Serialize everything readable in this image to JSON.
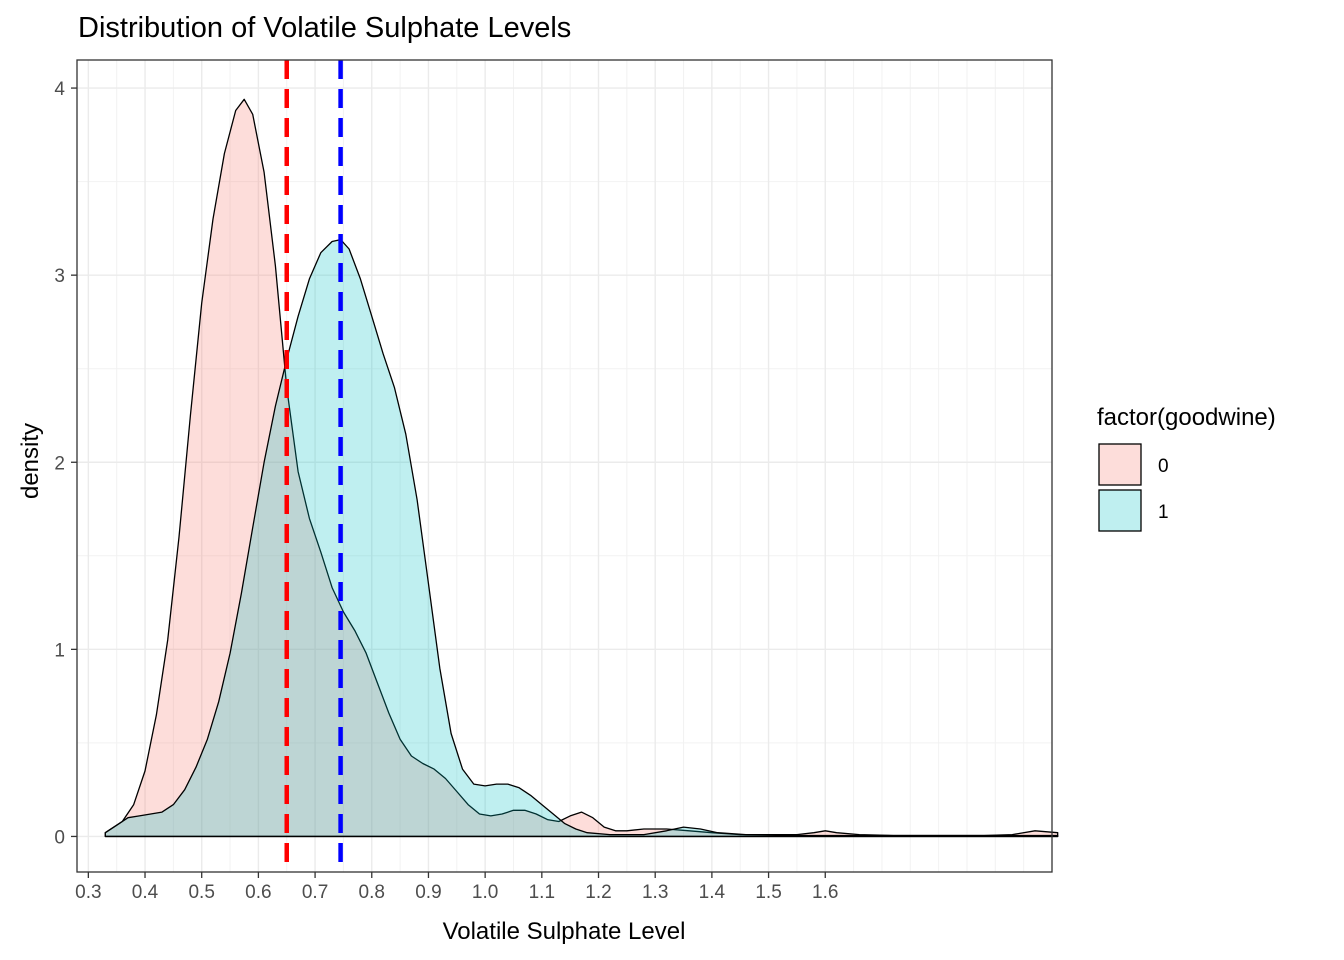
{
  "chart_data": {
    "type": "area",
    "title": "Distribution of Volatile Sulphate Levels",
    "xlabel": "Volatile Sulphate Level",
    "ylabel": "density",
    "xlim": [
      0.28,
      2.0
    ],
    "ylim": [
      -0.19,
      4.15
    ],
    "x_ticks": [
      "0.3",
      "0.4",
      "0.5",
      "0.6",
      "0.7",
      "0.8",
      "0.9",
      "1.0",
      "1.1",
      "1.2",
      "1.3",
      "1.4",
      "1.5",
      "1.6"
    ],
    "y_ticks": [
      "0",
      "1",
      "2",
      "3",
      "4"
    ],
    "grid": true,
    "legend": {
      "title": "factor(goodwine)",
      "position": "right",
      "entries": [
        "0",
        "1"
      ]
    },
    "series": [
      {
        "name": "0",
        "color": "#F8766D",
        "points": [
          [
            0.33,
            0.02
          ],
          [
            0.36,
            0.08
          ],
          [
            0.38,
            0.17
          ],
          [
            0.4,
            0.35
          ],
          [
            0.42,
            0.65
          ],
          [
            0.44,
            1.05
          ],
          [
            0.46,
            1.6
          ],
          [
            0.48,
            2.25
          ],
          [
            0.5,
            2.85
          ],
          [
            0.52,
            3.3
          ],
          [
            0.54,
            3.65
          ],
          [
            0.56,
            3.88
          ],
          [
            0.575,
            3.94
          ],
          [
            0.59,
            3.86
          ],
          [
            0.61,
            3.55
          ],
          [
            0.63,
            3.05
          ],
          [
            0.65,
            2.4
          ],
          [
            0.67,
            1.95
          ],
          [
            0.69,
            1.7
          ],
          [
            0.71,
            1.52
          ],
          [
            0.73,
            1.33
          ],
          [
            0.75,
            1.2
          ],
          [
            0.77,
            1.1
          ],
          [
            0.79,
            0.98
          ],
          [
            0.81,
            0.82
          ],
          [
            0.83,
            0.66
          ],
          [
            0.85,
            0.52
          ],
          [
            0.87,
            0.43
          ],
          [
            0.89,
            0.39
          ],
          [
            0.91,
            0.36
          ],
          [
            0.93,
            0.31
          ],
          [
            0.95,
            0.24
          ],
          [
            0.97,
            0.17
          ],
          [
            0.99,
            0.12
          ],
          [
            1.01,
            0.11
          ],
          [
            1.03,
            0.12
          ],
          [
            1.05,
            0.14
          ],
          [
            1.07,
            0.14
          ],
          [
            1.09,
            0.12
          ],
          [
            1.11,
            0.09
          ],
          [
            1.13,
            0.08
          ],
          [
            1.15,
            0.11
          ],
          [
            1.17,
            0.13
          ],
          [
            1.19,
            0.1
          ],
          [
            1.21,
            0.05
          ],
          [
            1.23,
            0.03
          ],
          [
            1.25,
            0.03
          ],
          [
            1.28,
            0.04
          ],
          [
            1.32,
            0.04
          ],
          [
            1.36,
            0.03
          ],
          [
            1.4,
            0.02
          ],
          [
            1.45,
            0.01
          ],
          [
            1.5,
            0.01
          ],
          [
            1.55,
            0.01
          ],
          [
            1.58,
            0.02
          ],
          [
            1.6,
            0.03
          ],
          [
            1.62,
            0.02
          ],
          [
            1.66,
            0.01
          ],
          [
            1.72,
            0.005
          ],
          [
            1.8,
            0.005
          ],
          [
            1.88,
            0.005
          ],
          [
            1.93,
            0.01
          ],
          [
            1.97,
            0.03
          ],
          [
            2.01,
            0.02
          ]
        ]
      },
      {
        "name": "1",
        "color": "#00BFC4",
        "points": [
          [
            0.33,
            0.02
          ],
          [
            0.35,
            0.06
          ],
          [
            0.37,
            0.1
          ],
          [
            0.39,
            0.11
          ],
          [
            0.41,
            0.12
          ],
          [
            0.43,
            0.13
          ],
          [
            0.45,
            0.17
          ],
          [
            0.47,
            0.25
          ],
          [
            0.49,
            0.37
          ],
          [
            0.51,
            0.52
          ],
          [
            0.53,
            0.72
          ],
          [
            0.55,
            0.98
          ],
          [
            0.57,
            1.3
          ],
          [
            0.59,
            1.65
          ],
          [
            0.61,
            2.0
          ],
          [
            0.63,
            2.3
          ],
          [
            0.65,
            2.55
          ],
          [
            0.67,
            2.78
          ],
          [
            0.69,
            2.98
          ],
          [
            0.71,
            3.12
          ],
          [
            0.73,
            3.18
          ],
          [
            0.745,
            3.19
          ],
          [
            0.76,
            3.14
          ],
          [
            0.78,
            2.98
          ],
          [
            0.8,
            2.78
          ],
          [
            0.82,
            2.58
          ],
          [
            0.84,
            2.4
          ],
          [
            0.86,
            2.15
          ],
          [
            0.88,
            1.8
          ],
          [
            0.9,
            1.35
          ],
          [
            0.92,
            0.9
          ],
          [
            0.94,
            0.55
          ],
          [
            0.96,
            0.36
          ],
          [
            0.98,
            0.28
          ],
          [
            1.0,
            0.27
          ],
          [
            1.02,
            0.28
          ],
          [
            1.04,
            0.28
          ],
          [
            1.06,
            0.26
          ],
          [
            1.08,
            0.22
          ],
          [
            1.1,
            0.17
          ],
          [
            1.12,
            0.12
          ],
          [
            1.14,
            0.07
          ],
          [
            1.16,
            0.04
          ],
          [
            1.18,
            0.02
          ],
          [
            1.22,
            0.01
          ],
          [
            1.28,
            0.01
          ],
          [
            1.32,
            0.03
          ],
          [
            1.35,
            0.05
          ],
          [
            1.38,
            0.04
          ],
          [
            1.41,
            0.02
          ],
          [
            1.46,
            0.01
          ],
          [
            1.55,
            0.005
          ],
          [
            1.62,
            0.005
          ],
          [
            1.7,
            0.005
          ],
          [
            1.85,
            0.005
          ],
          [
            2.01,
            0.005
          ]
        ]
      }
    ],
    "reference_lines": [
      {
        "series": "0",
        "x": 0.65,
        "color": "#FF0000",
        "style": "dashed"
      },
      {
        "series": "1",
        "x": 0.745,
        "color": "#0000FF",
        "style": "dashed"
      }
    ]
  }
}
